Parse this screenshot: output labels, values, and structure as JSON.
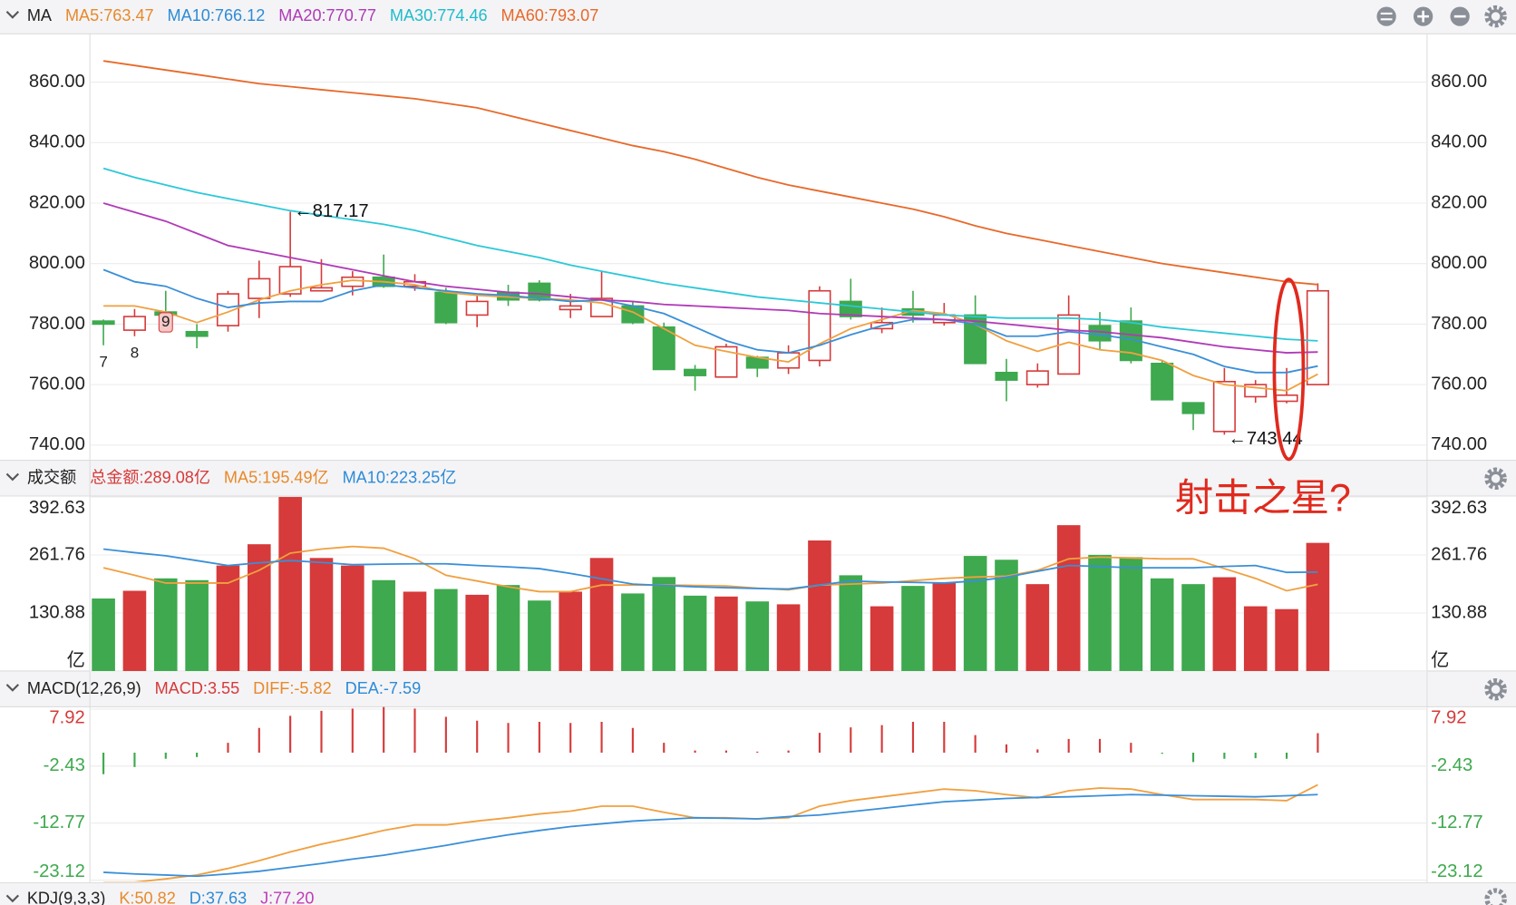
{
  "chart_data": [
    {
      "type": "candlestick",
      "header": {
        "title": "MA",
        "items": [
          {
            "label": "MA5:763.47",
            "color": "#e8892a"
          },
          {
            "label": "MA10:766.12",
            "color": "#2e8bd6"
          },
          {
            "label": "MA20:770.77",
            "color": "#b03ab8"
          },
          {
            "label": "MA30:774.46",
            "color": "#1fbccd"
          },
          {
            "label": "MA60:793.07",
            "color": "#e8692a"
          }
        ]
      },
      "up_color": "#d63a3a",
      "down_color": "#3ea94e",
      "open": [
        781,
        778,
        784,
        777.5,
        779.5,
        788.5,
        790,
        791,
        792.5,
        795.5,
        792.5,
        790.5,
        783,
        790.5,
        793.5,
        784.8,
        782.5,
        786,
        779,
        765,
        762.5,
        769,
        765.5,
        768,
        787.5,
        778.5,
        785,
        780.5,
        783,
        764,
        760,
        763.5,
        779.5,
        781,
        767,
        754,
        744.5,
        756,
        754.5,
        760
      ],
      "high": [
        781.5,
        785,
        791,
        780,
        791,
        801,
        817.17,
        801.5,
        797.5,
        803,
        796.5,
        792,
        789.5,
        793,
        794.5,
        790,
        797.5,
        787.5,
        780.5,
        766.5,
        773.5,
        769.5,
        773,
        792.5,
        795,
        785.5,
        791,
        787,
        789.5,
        768.5,
        767,
        789.5,
        784,
        785.5,
        768,
        754,
        765.5,
        761.5,
        765.5,
        793.5
      ],
      "low": [
        773,
        776,
        782.5,
        772,
        777.5,
        782,
        789,
        791,
        789.5,
        792,
        791,
        780,
        779,
        786,
        787.5,
        782,
        782.5,
        780,
        765,
        758,
        762.5,
        762.5,
        763.5,
        766,
        781.5,
        777,
        780.5,
        779.5,
        767,
        754.5,
        759,
        763.5,
        771.5,
        767,
        755,
        745,
        743.44,
        754,
        753.8,
        760
      ],
      "close": [
        780,
        782.5,
        783,
        776,
        790,
        795,
        799,
        792,
        795.5,
        792.5,
        794,
        780.5,
        787.5,
        788,
        788,
        786,
        788.5,
        780.5,
        765,
        763,
        772.5,
        765.5,
        770.5,
        791,
        782.5,
        780.5,
        783,
        783,
        767,
        761.5,
        764.5,
        783,
        774.5,
        768,
        755,
        750.5,
        761,
        760,
        756.5,
        791
      ],
      "series": [
        {
          "color": "#f0a040",
          "values": [
            786,
            786,
            784,
            780.5,
            784,
            788,
            791,
            793,
            794.5,
            794,
            793,
            790.5,
            789.5,
            789,
            788.5,
            788,
            787,
            784,
            778.5,
            773,
            771,
            769,
            767.5,
            773.5,
            778.5,
            781.5,
            784.5,
            783.5,
            780,
            774.5,
            771,
            774,
            771.5,
            770.5,
            768,
            763,
            760,
            759,
            758,
            763.47
          ]
        },
        {
          "color": "#3a8fd8",
          "values": [
            798,
            794,
            792.5,
            788.5,
            785.5,
            787,
            787.5,
            787.5,
            791,
            793,
            792,
            791,
            790,
            789.5,
            788.5,
            787.5,
            788,
            786,
            783.5,
            779,
            774.5,
            771.5,
            770.5,
            773,
            776.5,
            779.5,
            781.5,
            781.5,
            780,
            776,
            776,
            777.5,
            776.5,
            775,
            772.5,
            770,
            766,
            764,
            764,
            766.12
          ]
        },
        {
          "color": "#b03ab8",
          "values": [
            820,
            817,
            814,
            810,
            806,
            804,
            802,
            800,
            798,
            796,
            794,
            792.5,
            791.5,
            790.5,
            790,
            789,
            788,
            787.5,
            786.5,
            786,
            785.5,
            785,
            784.5,
            783.5,
            783,
            782.5,
            782,
            781.5,
            781,
            780,
            779,
            778,
            777.5,
            776.5,
            775.5,
            774,
            772.5,
            771.5,
            770.5,
            770.77
          ]
        },
        {
          "color": "#2cc8d8",
          "values": [
            831.5,
            828.5,
            826,
            823.5,
            821.5,
            819.5,
            817.5,
            816,
            814.5,
            813,
            811,
            808.5,
            806,
            804,
            802,
            799.5,
            797.5,
            795.5,
            793.5,
            792,
            790.5,
            789,
            788,
            787,
            786,
            785,
            784,
            783,
            782.5,
            782,
            782,
            782,
            781.5,
            780.5,
            779,
            778,
            777,
            776,
            775,
            774.46
          ]
        },
        {
          "color": "#e8692a",
          "values": [
            867,
            865.5,
            864,
            862.5,
            861,
            859.5,
            858.5,
            857.5,
            856.5,
            855.5,
            854.5,
            853,
            851.5,
            849,
            846.5,
            844,
            841.5,
            839,
            837,
            834.5,
            831.5,
            828.5,
            826,
            824,
            822,
            820,
            818,
            815.5,
            812.5,
            810,
            808,
            806,
            804,
            802,
            800,
            798.5,
            797,
            795.5,
            794,
            793.07
          ]
        }
      ],
      "annotations": [
        "←817.17",
        "←743.44"
      ],
      "sequence_labels": [
        "7",
        "8",
        "9"
      ],
      "callout": "射击之星?",
      "ylim": [
        735,
        875
      ],
      "yticks": [
        {
          "value": 740,
          "label": "740.00"
        },
        {
          "value": 760,
          "label": "760.00"
        },
        {
          "value": 780,
          "label": "780.00"
        },
        {
          "value": 800,
          "label": "800.00"
        },
        {
          "value": 820,
          "label": "820.00"
        },
        {
          "value": 840,
          "label": "840.00"
        },
        {
          "value": 860,
          "label": "860.00"
        }
      ],
      "grid": true
    },
    {
      "type": "bar",
      "header": {
        "title": "成交额",
        "items": [
          {
            "label": "总金额:289.08亿",
            "color": "#d63a3a"
          },
          {
            "label": "MA5:195.49亿",
            "color": "#e8892a"
          },
          {
            "label": "MA10:223.25亿",
            "color": "#2e8bd6"
          }
        ]
      },
      "values": [
        163.6,
        181,
        209,
        205,
        238,
        286,
        392.63,
        255,
        238,
        205,
        179,
        185,
        172,
        194,
        159,
        179,
        255,
        175,
        212,
        170,
        168,
        157,
        150.5,
        294.5,
        216,
        146,
        192,
        198.5,
        259.6,
        251,
        196,
        329,
        262,
        257,
        209,
        196,
        211.6,
        146,
        139.6,
        289.08
      ],
      "series": [
        {
          "color": "#f0a040",
          "values": [
            233,
            216,
            198.5,
            198.5,
            198.5,
            227,
            266,
            275,
            281,
            277,
            253,
            216,
            203,
            190,
            179,
            179,
            194,
            194,
            194,
            193,
            192,
            187,
            183,
            194,
            196,
            198.5,
            204,
            209,
            212,
            214,
            227,
            253,
            257,
            255,
            253,
            253,
            231,
            209,
            181,
            195.49
          ]
        },
        {
          "color": "#3a8fd8",
          "values": [
            275,
            267,
            260,
            249,
            238,
            244,
            249,
            245,
            240,
            241,
            242,
            242,
            238,
            235,
            231,
            220,
            208,
            196,
            193,
            190,
            188,
            186,
            185,
            194,
            203,
            201,
            200,
            198.5,
            203,
            211.6,
            225,
            238,
            236,
            233,
            233,
            233,
            236,
            238,
            222.5,
            223.25
          ]
        }
      ],
      "ylim": [
        0,
        392.63
      ],
      "yticks": [
        {
          "value": 0,
          "label": "亿"
        },
        130.88,
        261.76,
        392.63
      ],
      "grid": true
    },
    {
      "type": "macd",
      "header": {
        "title": "MACD(12,26,9)",
        "items": [
          {
            "label": "MACD:3.55",
            "color": "#d63a3a"
          },
          {
            "label": "DIFF:-5.82",
            "color": "#e8892a"
          },
          {
            "label": "DEA:-7.59",
            "color": "#2e8bd6"
          }
        ]
      },
      "positive_color": "#d63a3a",
      "negative_color": "#3ea94e",
      "values": [
        -3.9,
        -2.6,
        -1.1,
        -0.8,
        1.8,
        4.5,
        6.7,
        7.6,
        8.0,
        8.3,
        8.0,
        6.5,
        5.8,
        5.4,
        5.6,
        5.4,
        5.6,
        4.5,
        1.8,
        0.4,
        0.4,
        0.2,
        0.4,
        3.6,
        4.6,
        5.0,
        5.6,
        5.6,
        3.2,
        1.5,
        0.6,
        2.5,
        2.5,
        1.8,
        -0.2,
        -1.7,
        -1.1,
        -1.0,
        -1.1,
        3.55
      ],
      "series": [
        {
          "color": "#f0a040",
          "values": [
            -23.5,
            -23.5,
            -22.9,
            -22.2,
            -21,
            -19.6,
            -18,
            -16.6,
            -15.4,
            -14.1,
            -13.1,
            -13.1,
            -12.4,
            -11.8,
            -11.1,
            -10.6,
            -9.7,
            -9.7,
            -10.8,
            -11.8,
            -11.8,
            -12,
            -11.8,
            -9.7,
            -8.7,
            -8,
            -7.3,
            -6.6,
            -6.9,
            -7.6,
            -8.2,
            -6.9,
            -6.4,
            -6.6,
            -7.6,
            -8.5,
            -8.5,
            -8.5,
            -8.7,
            -5.82
          ]
        },
        {
          "color": "#3a8fd8",
          "values": [
            -21.7,
            -22,
            -22.2,
            -22.4,
            -22,
            -21.5,
            -20.8,
            -20.1,
            -19.3,
            -18.6,
            -17.7,
            -16.8,
            -15.8,
            -14.9,
            -14.1,
            -13.4,
            -12.9,
            -12.4,
            -12.1,
            -11.8,
            -11.9,
            -12,
            -11.6,
            -11.3,
            -10.7,
            -10.1,
            -9.5,
            -8.9,
            -8.6,
            -8.3,
            -8.1,
            -8,
            -7.8,
            -7.6,
            -7.7,
            -7.8,
            -7.9,
            -8,
            -7.8,
            -7.59
          ]
        }
      ],
      "ylim": [
        -23.42,
        8.33
      ],
      "yticks": [
        7.92,
        -2.43,
        -12.77,
        -23.12
      ],
      "grid": true
    }
  ],
  "kdj": {
    "title": "KDJ(9,3,3)",
    "items": [
      {
        "label": "K:50.82",
        "color": "#e8892a"
      },
      {
        "label": "D:37.63",
        "color": "#2e8bd6"
      },
      {
        "label": "J:77.20",
        "color": "#c03ab8"
      }
    ]
  }
}
